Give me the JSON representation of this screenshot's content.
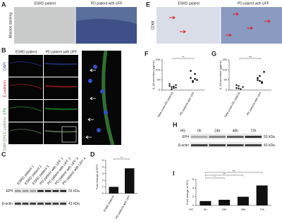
{
  "panels": {
    "A": {
      "label": "A",
      "columns": [
        "ESRD patient",
        "PD patient with UFF"
      ],
      "row": "Masson staining"
    },
    "E": {
      "label": "E",
      "columns": [
        "ESRD patient",
        "PD patient with UFF"
      ],
      "row": "CD68"
    },
    "B": {
      "label": "B",
      "columns": [
        "ESRD patient",
        "PD patient with UFF"
      ],
      "rows": [
        "DAPI",
        "E-cadherin",
        "EP4",
        "DAPI EP4 E-cadherin"
      ]
    },
    "C": {
      "label": "C",
      "lanes": [
        "ESRD patient 1",
        "ESRD patient 2",
        "ESRD patient 3",
        "PD patient with UFF 1",
        "PD patient with UFF 2",
        "PD patient with UFF 3",
        "PD patient with UFF 4"
      ],
      "bands": [
        "EP4",
        "β-actin"
      ],
      "sizes": [
        "53 kDa",
        "43 kDa"
      ]
    },
    "H": {
      "label": "H",
      "treatment": "HG",
      "lanes": [
        "0h",
        "24h",
        "48h",
        "72h"
      ],
      "bands": [
        "EP4",
        "β-actin"
      ],
      "sizes": [
        "53 kDa",
        "43 kDa"
      ]
    }
  },
  "chart_data": [
    {
      "panel": "D",
      "type": "bar",
      "ylabel": "Fold change of EP4",
      "categories": [
        "ESRD patients",
        "PD patients with UFF"
      ],
      "values": [
        1,
        3.8
      ],
      "color": "#111",
      "ylim": [
        0,
        5
      ],
      "yticks": [
        0,
        1,
        2,
        3,
        4,
        5
      ],
      "significance": [
        "**"
      ]
    },
    {
      "panel": "F",
      "type": "scatter",
      "ylabel": "IL-1β secretion (pg/mL)",
      "categories": [
        "New-onset PD patients",
        "PD patients with UFF"
      ],
      "series": [
        {
          "values": [
            20,
            15,
            10,
            25,
            30,
            5,
            18,
            12
          ],
          "marker": "circle"
        },
        {
          "values": [
            60,
            45,
            80,
            50,
            95,
            40,
            55
          ],
          "marker": "square"
        }
      ],
      "color": "#111",
      "ylim": [
        0,
        150
      ],
      "yticks": [
        0,
        50,
        100,
        150
      ],
      "significance": [
        "**"
      ]
    },
    {
      "panel": "G",
      "type": "scatter",
      "ylabel": "IL-18 secretion (pg/mL)",
      "categories": [
        "New-onset PD patients",
        "PD patients with UFF"
      ],
      "series": [
        {
          "values": [
            10,
            20,
            5,
            15,
            25,
            8
          ],
          "marker": "circle"
        },
        {
          "values": [
            50,
            70,
            40,
            90,
            60,
            45,
            35
          ],
          "marker": "square"
        }
      ],
      "color": "#111",
      "ylim": [
        0,
        150
      ],
      "yticks": [
        0,
        50,
        100,
        150
      ],
      "significance": [
        "***"
      ]
    },
    {
      "panel": "I",
      "type": "bar",
      "ylabel": "Fold change of EP4",
      "xlabel": "HG",
      "categories": [
        "0h",
        "24h",
        "48h",
        "72h"
      ],
      "values": [
        1,
        1.3,
        2,
        4.6
      ],
      "color": "#111",
      "ylim": [
        0,
        6
      ],
      "yticks": [
        0,
        2,
        4,
        6
      ],
      "significance": [
        "*",
        "**",
        "***"
      ]
    }
  ]
}
